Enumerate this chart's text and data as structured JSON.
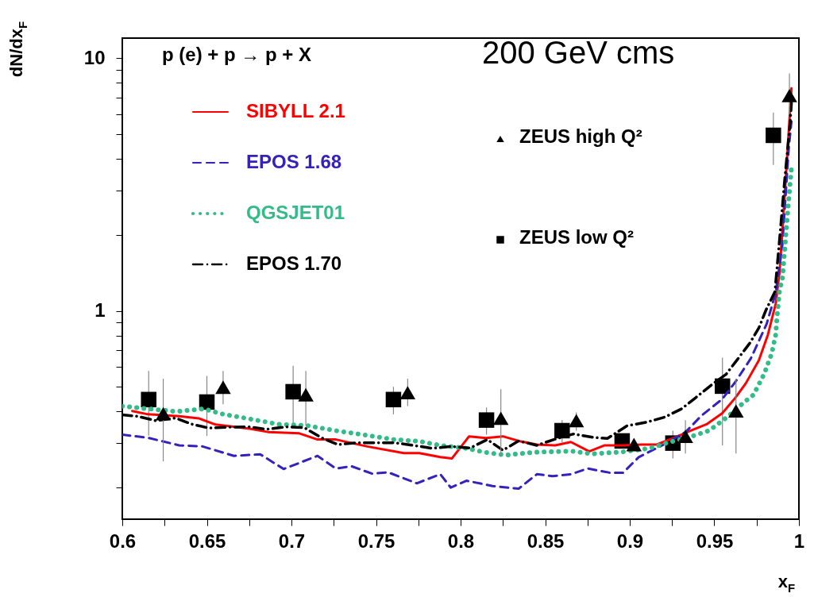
{
  "chart_data": {
    "type": "line",
    "xlabel": "x$_{F}$",
    "ylabel": "dN/dx$_{F}$",
    "annotations": [
      "p (e) + p → p + X",
      "200 GeV cms"
    ],
    "log": "y",
    "grid": false,
    "legend": "top left",
    "xlim": [
      0.6,
      1.0
    ],
    "ylim": [
      0.15,
      12
    ],
    "xticks": [
      0.6,
      {
        "value": 0.625,
        "label": null
      },
      0.65,
      {
        "value": 0.675,
        "label": null
      },
      0.7,
      {
        "value": 0.725,
        "label": null
      },
      0.75,
      {
        "value": 0.775,
        "label": null
      },
      0.8,
      {
        "value": 0.825,
        "label": null
      },
      0.85,
      {
        "value": 0.875,
        "label": null
      },
      0.9,
      {
        "value": 0.925,
        "label": null
      },
      0.95,
      {
        "value": 0.975,
        "label": null
      },
      1
    ],
    "yticks": [
      {
        "value": 0.2,
        "label": null
      },
      {
        "value": 0.3,
        "label": null
      },
      {
        "value": 0.4,
        "label": null
      },
      {
        "value": 0.5,
        "label": null
      },
      {
        "value": 0.6,
        "label": null
      },
      {
        "value": 0.7,
        "label": null
      },
      {
        "value": 0.8,
        "label": null
      },
      {
        "value": 0.9,
        "label": null
      },
      1,
      {
        "value": 2,
        "label": null
      },
      {
        "value": 3,
        "label": null
      },
      {
        "value": 4,
        "label": null
      },
      {
        "value": 5,
        "label": null
      },
      {
        "value": 6,
        "label": null
      },
      {
        "value": 7,
        "label": null
      },
      {
        "value": 8,
        "label": null
      },
      {
        "value": 9,
        "label": null
      },
      10
    ],
    "series": [
      {
        "name": "SIBYLL 2.1",
        "line_style": "solid",
        "color": "#ff0000",
        "x": [
          0.6059,
          0.6151,
          0.6336,
          0.6452,
          0.6552,
          0.6753,
          0.6861,
          0.7046,
          0.7154,
          0.7262,
          0.7448,
          0.7664,
          0.7756,
          0.788,
          0.7949,
          0.805,
          0.815,
          0.825,
          0.8343,
          0.8451,
          0.8559,
          0.8652,
          0.876,
          0.8852,
          0.896,
          0.9068,
          0.916,
          0.9269,
          0.9361,
          0.9454,
          0.9547,
          0.9624,
          0.9686,
          0.9763,
          0.9817,
          0.9863,
          0.9886,
          0.9917,
          0.9956
        ],
        "values": [
          0.402,
          0.39,
          0.383,
          0.376,
          0.355,
          0.342,
          0.332,
          0.328,
          0.31,
          0.31,
          0.291,
          0.274,
          0.274,
          0.264,
          0.261,
          0.319,
          0.314,
          0.319,
          0.306,
          0.296,
          0.294,
          0.303,
          0.278,
          0.294,
          0.294,
          0.296,
          0.296,
          0.316,
          0.336,
          0.356,
          0.394,
          0.453,
          0.517,
          0.637,
          0.806,
          1.07,
          1.43,
          2.94,
          7.59
        ]
      },
      {
        "name": "EPOS 1.68",
        "line_style": "dashed",
        "color": "#3322bb",
        "x": [
          0.6,
          0.6151,
          0.6336,
          0.6475,
          0.666,
          0.6815,
          0.6954,
          0.7154,
          0.7262,
          0.7355,
          0.7478,
          0.7571,
          0.7741,
          0.788,
          0.7942,
          0.8034,
          0.8189,
          0.8343,
          0.8451,
          0.8544,
          0.8652,
          0.8752,
          0.8883,
          0.896,
          0.9053,
          0.9192,
          0.9331,
          0.9423,
          0.9547,
          0.9624,
          0.9716,
          0.9809,
          0.9863,
          0.9902,
          0.994,
          0.9956
        ],
        "values": [
          0.324,
          0.315,
          0.294,
          0.291,
          0.267,
          0.271,
          0.237,
          0.267,
          0.238,
          0.243,
          0.227,
          0.23,
          0.208,
          0.226,
          0.2,
          0.213,
          0.203,
          0.198,
          0.226,
          0.222,
          0.226,
          0.238,
          0.229,
          0.229,
          0.264,
          0.294,
          0.332,
          0.385,
          0.448,
          0.523,
          0.649,
          0.887,
          1.18,
          1.82,
          4.42,
          5.62
        ]
      },
      {
        "name": "QGSJET01",
        "line_style": "dotted",
        "color": "#33bb88",
        "x": [
          0.6,
          0.6151,
          0.6321,
          0.6483,
          0.6591,
          0.6753,
          0.6923,
          0.7093,
          0.7262,
          0.7448,
          0.7602,
          0.7756,
          0.788,
          0.8034,
          0.8142,
          0.8266,
          0.8436,
          0.8652,
          0.8775,
          0.896,
          0.9115,
          0.9223,
          0.9346,
          0.9469,
          0.9578,
          0.967,
          0.9732,
          0.9794,
          0.984,
          0.9863,
          0.9871,
          0.9886,
          0.9902,
          0.9933,
          0.9956
        ],
        "values": [
          0.42,
          0.41,
          0.4,
          0.41,
          0.391,
          0.374,
          0.356,
          0.352,
          0.336,
          0.322,
          0.31,
          0.305,
          0.294,
          0.286,
          0.276,
          0.269,
          0.276,
          0.279,
          0.272,
          0.277,
          0.286,
          0.301,
          0.316,
          0.336,
          0.381,
          0.432,
          0.466,
          0.562,
          0.681,
          0.806,
          0.953,
          1.21,
          1.33,
          2.43,
          3.7
        ]
      },
      {
        "name": "EPOS 1.70",
        "line_style": "dashdot",
        "color": "#000000",
        "x": [
          0.6,
          0.609,
          0.6198,
          0.6313,
          0.6414,
          0.6514,
          0.663,
          0.6745,
          0.6853,
          0.6969,
          0.7077,
          0.7177,
          0.7275,
          0.7386,
          0.7498,
          0.761,
          0.7718,
          0.7833,
          0.7942,
          0.8057,
          0.8158,
          0.825,
          0.8343,
          0.8451,
          0.8559,
          0.8667,
          0.8783,
          0.8868,
          0.8983,
          0.9099,
          0.9207,
          0.9307,
          0.9392,
          0.9485,
          0.957,
          0.9639,
          0.9709,
          0.9763,
          0.9806,
          0.9858,
          0.9886,
          0.9917,
          0.9948,
          0.9956
        ],
        "values": [
          0.388,
          0.383,
          0.368,
          0.377,
          0.356,
          0.344,
          0.347,
          0.348,
          0.34,
          0.348,
          0.345,
          0.315,
          0.296,
          0.301,
          0.301,
          0.301,
          0.294,
          0.286,
          0.291,
          0.287,
          0.31,
          0.281,
          0.306,
          0.294,
          0.311,
          0.326,
          0.316,
          0.313,
          0.351,
          0.363,
          0.38,
          0.41,
          0.455,
          0.511,
          0.562,
          0.646,
          0.745,
          0.856,
          1.01,
          1.19,
          1.93,
          3.36,
          5.56,
          6.65
        ]
      },
      {
        "name": "ZEUS high Q²",
        "type": "scatter",
        "marker": "triangle",
        "color": "#000000",
        "x": [
          0.6242,
          0.6596,
          0.7085,
          0.7687,
          0.8238,
          0.8684,
          0.9025,
          0.9329,
          0.9628,
          0.9944
        ],
        "values": [
          0.392,
          0.499,
          0.466,
          0.475,
          0.376,
          0.368,
          0.296,
          0.319,
          0.402,
          7.11
        ],
        "errors": [
          [
            0.254,
            0.539
          ],
          [
            0.427,
            0.579
          ],
          [
            0.352,
            0.579
          ],
          [
            0.42,
            0.539
          ],
          [
            0.268,
            0.49
          ],
          [
            0.336,
            0.397
          ],
          null,
          [
            0.273,
            0.37
          ],
          [
            0.273,
            0.539
          ],
          [
            6.0,
            8.7
          ]
        ]
      },
      {
        "name": "ZEUS low Q²",
        "type": "scatter",
        "marker": "square",
        "color": "#000000",
        "x": [
          0.6156,
          0.65,
          0.701,
          0.7603,
          0.8153,
          0.86,
          0.8955,
          0.9255,
          0.9548,
          0.9849
        ],
        "values": [
          0.446,
          0.436,
          0.479,
          0.446,
          0.37,
          0.336,
          0.306,
          0.3,
          0.504,
          4.95
        ],
        "errors": [
          [
            0.321,
            0.579
          ],
          [
            0.32,
            0.553
          ],
          [
            0.352,
            0.607
          ],
          [
            0.39,
            0.501
          ],
          [
            0.324,
            0.415
          ],
          [
            0.302,
            0.37
          ],
          null,
          [
            0.261,
            0.336
          ],
          [
            0.294,
            0.653
          ],
          [
            3.78,
            6.09
          ]
        ]
      }
    ]
  }
}
